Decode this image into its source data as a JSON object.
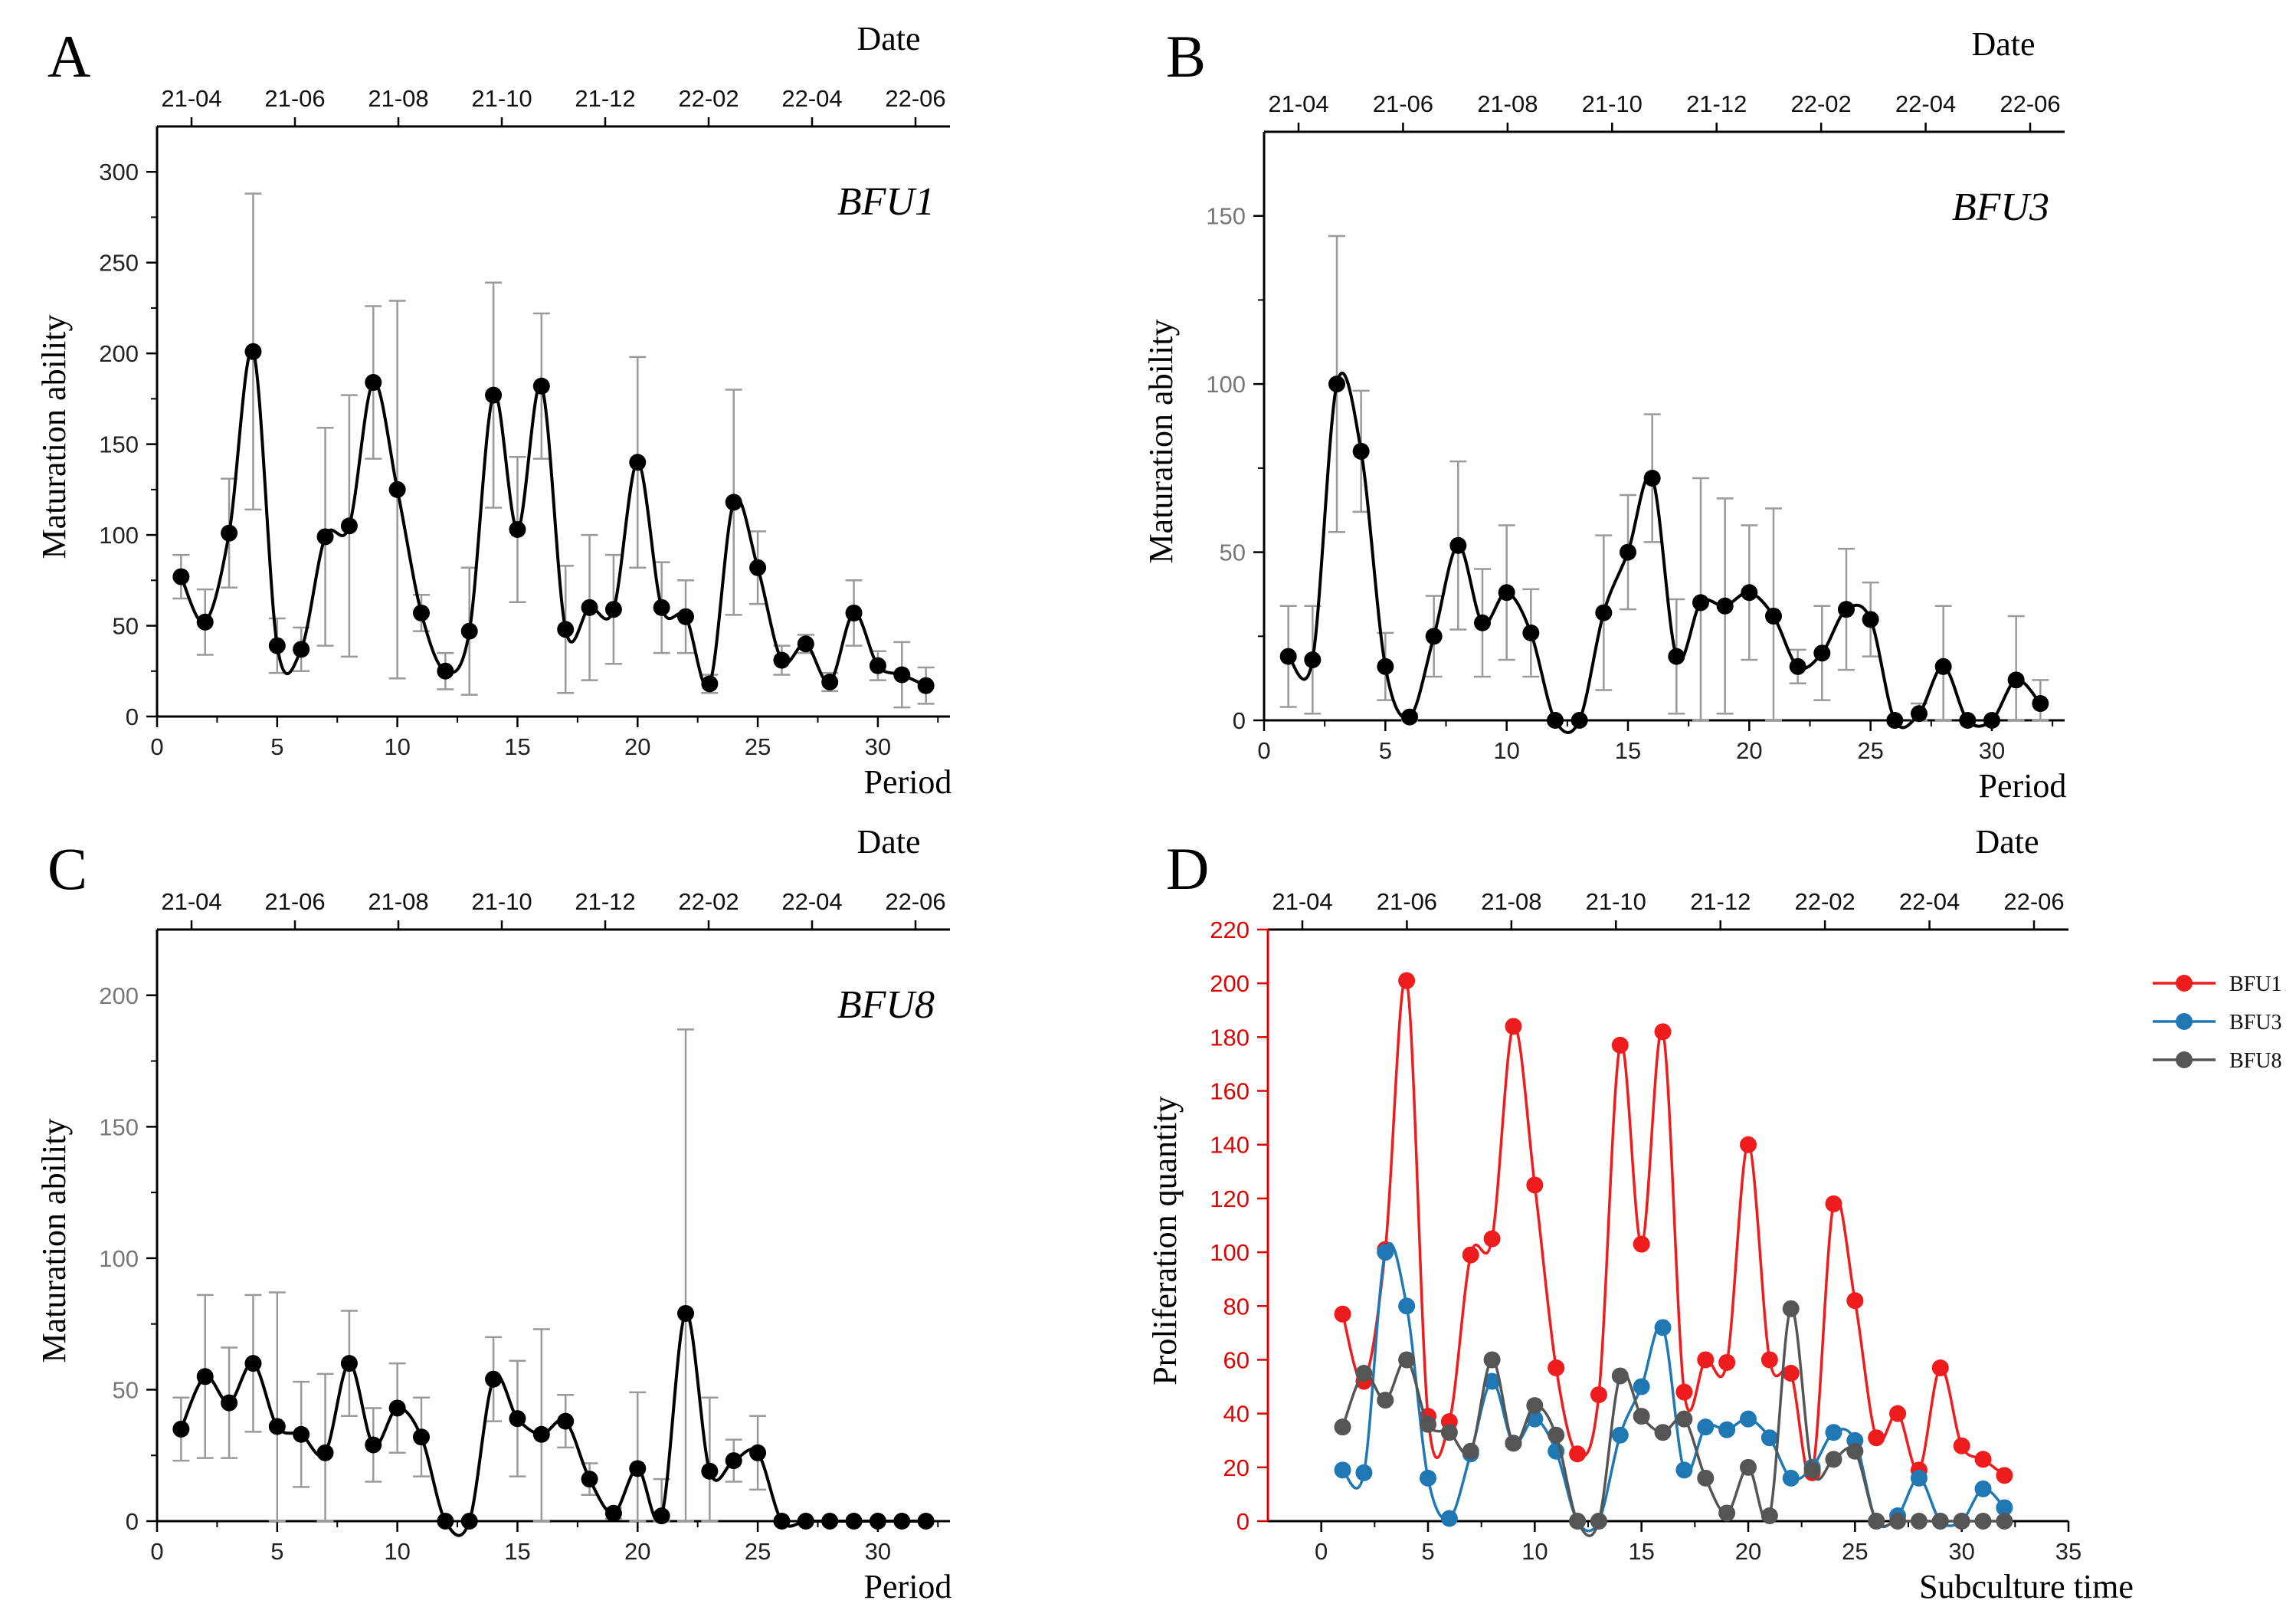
{
  "figure": {
    "panel_letters": [
      "A",
      "B",
      "C",
      "D"
    ]
  },
  "chart_data": [
    {
      "panel": "A",
      "type": "line",
      "title": "BFU1",
      "xlabel": "Period",
      "ylabel": "Maturation  ability",
      "top_axis_label": "Date",
      "top_ticks": [
        "21-04",
        "21-06",
        "21-08",
        "21-10",
        "21-12",
        "22-02",
        "22-04",
        "22-06"
      ],
      "xlim": [
        0,
        33
      ],
      "ylim": [
        0,
        325
      ],
      "xticks": [
        0,
        5,
        10,
        15,
        20,
        25,
        30
      ],
      "yticks": [
        0,
        50,
        100,
        150,
        200,
        250,
        300
      ],
      "x": [
        1,
        2,
        3,
        4,
        5,
        6,
        7,
        8,
        9,
        10,
        11,
        12,
        13,
        14,
        15,
        16,
        17,
        18,
        19,
        20,
        21,
        22,
        23,
        24,
        25,
        26,
        27,
        28,
        29,
        30,
        31,
        32
      ],
      "values": [
        77,
        52,
        101,
        201,
        39,
        37,
        99,
        105,
        184,
        125,
        57,
        25,
        47,
        177,
        103,
        182,
        48,
        60,
        59,
        140,
        60,
        55,
        18,
        118,
        82,
        31,
        40,
        19,
        57,
        28,
        23,
        17
      ],
      "errors": [
        12,
        18,
        30,
        87,
        15,
        12,
        60,
        72,
        42,
        104,
        10,
        10,
        35,
        62,
        40,
        40,
        35,
        40,
        30,
        58,
        25,
        20,
        5,
        62,
        20,
        8,
        5,
        5,
        18,
        8,
        18,
        10
      ],
      "color": "#000000"
    },
    {
      "panel": "B",
      "type": "line",
      "title": "BFU3",
      "xlabel": "Period",
      "ylabel": "Maturation  ability",
      "top_axis_label": "Date",
      "top_ticks": [
        "21-04",
        "21-06",
        "21-08",
        "21-10",
        "21-12",
        "22-02",
        "22-04",
        "22-06"
      ],
      "xlim": [
        0,
        33
      ],
      "ylim": [
        0,
        175
      ],
      "xticks": [
        0,
        5,
        10,
        15,
        20,
        25,
        30
      ],
      "yticks": [
        0,
        50,
        100,
        150
      ],
      "x": [
        1,
        2,
        3,
        4,
        5,
        6,
        7,
        8,
        9,
        10,
        11,
        12,
        13,
        14,
        15,
        16,
        17,
        18,
        19,
        20,
        21,
        22,
        23,
        24,
        25,
        26,
        27,
        28,
        29,
        30,
        31,
        32
      ],
      "values": [
        19,
        18,
        100,
        80,
        16,
        1,
        25,
        52,
        29,
        38,
        26,
        0,
        0,
        32,
        50,
        72,
        19,
        35,
        34,
        38,
        31,
        16,
        20,
        33,
        30,
        0,
        2,
        16,
        0,
        0,
        12,
        5
      ],
      "errors": [
        15,
        16,
        44,
        18,
        10,
        1,
        12,
        25,
        16,
        20,
        13,
        0,
        0,
        23,
        17,
        19,
        17,
        37,
        32,
        20,
        32,
        5,
        14,
        18,
        11,
        0,
        3,
        18,
        0,
        0,
        19,
        7
      ],
      "color": "#000000"
    },
    {
      "panel": "C",
      "type": "line",
      "title": "BFU8",
      "xlabel": "Period",
      "ylabel": "Maturation  ability",
      "top_axis_label": "Date",
      "top_ticks": [
        "21-04",
        "21-06",
        "21-08",
        "21-10",
        "21-12",
        "22-02",
        "22-04",
        "22-06"
      ],
      "xlim": [
        0,
        33
      ],
      "ylim": [
        0,
        225
      ],
      "xticks": [
        0,
        5,
        10,
        15,
        20,
        25,
        30
      ],
      "yticks": [
        0,
        50,
        100,
        150,
        200
      ],
      "x": [
        1,
        2,
        3,
        4,
        5,
        6,
        7,
        8,
        9,
        10,
        11,
        12,
        13,
        14,
        15,
        16,
        17,
        18,
        19,
        20,
        21,
        22,
        23,
        24,
        25,
        26,
        27,
        28,
        29,
        30,
        31,
        32
      ],
      "values": [
        35,
        55,
        45,
        60,
        36,
        33,
        26,
        60,
        29,
        43,
        32,
        0,
        0,
        54,
        39,
        33,
        38,
        16,
        3,
        20,
        2,
        79,
        19,
        23,
        26,
        0,
        0,
        0,
        0,
        0,
        0,
        0
      ],
      "errors": [
        12,
        31,
        21,
        26,
        51,
        20,
        30,
        20,
        14,
        17,
        15,
        0,
        0,
        16,
        22,
        40,
        10,
        6,
        2,
        29,
        14,
        108,
        28,
        8,
        14,
        0,
        0,
        0,
        0,
        0,
        0,
        0
      ],
      "color": "#000000"
    },
    {
      "panel": "D",
      "type": "line",
      "title": "",
      "xlabel": "Subculture time",
      "ylabel": "Proliferation quantity",
      "top_axis_label": "Date",
      "top_ticks": [
        "21-04",
        "21-06",
        "21-08",
        "21-10",
        "21-12",
        "22-02",
        "22-04",
        "22-06"
      ],
      "xlim": [
        -2.5,
        35
      ],
      "ylim": [
        0,
        220
      ],
      "xticks": [
        0,
        5,
        10,
        15,
        20,
        25,
        30,
        35
      ],
      "yticks": [
        0,
        20,
        40,
        60,
        80,
        100,
        120,
        140,
        160,
        180,
        200,
        220
      ],
      "x": [
        1,
        2,
        3,
        4,
        5,
        6,
        7,
        8,
        9,
        10,
        11,
        12,
        13,
        14,
        15,
        16,
        17,
        18,
        19,
        20,
        21,
        22,
        23,
        24,
        25,
        26,
        27,
        28,
        29,
        30,
        31,
        32
      ],
      "legend_position": "right",
      "series": [
        {
          "name": "BFU1",
          "color": "#ee1c1c",
          "values": [
            77,
            52,
            101,
            201,
            39,
            37,
            99,
            105,
            184,
            125,
            57,
            25,
            47,
            177,
            103,
            182,
            48,
            60,
            59,
            140,
            60,
            55,
            18,
            118,
            82,
            31,
            40,
            19,
            57,
            28,
            23,
            17
          ]
        },
        {
          "name": "BFU3",
          "color": "#1f78b4",
          "values": [
            19,
            18,
            100,
            80,
            16,
            1,
            25,
            52,
            29,
            38,
            26,
            0,
            0,
            32,
            50,
            72,
            19,
            35,
            34,
            38,
            31,
            16,
            20,
            33,
            30,
            0,
            2,
            16,
            0,
            0,
            12,
            5
          ]
        },
        {
          "name": "BFU8",
          "color": "#555555",
          "values": [
            35,
            55,
            45,
            60,
            36,
            33,
            26,
            60,
            29,
            43,
            32,
            0,
            0,
            54,
            39,
            33,
            38,
            16,
            3,
            20,
            2,
            79,
            19,
            23,
            26,
            0,
            0,
            0,
            0,
            0,
            0,
            0
          ]
        }
      ]
    }
  ]
}
